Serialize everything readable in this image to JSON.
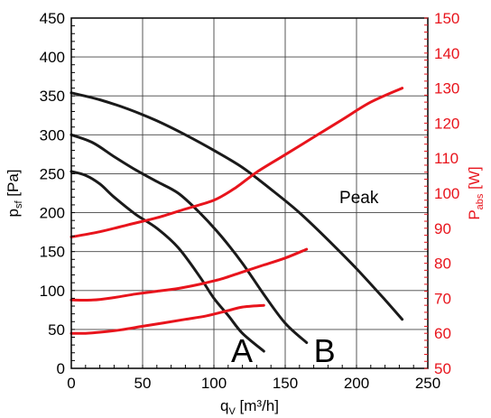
{
  "chart_data": {
    "type": "line",
    "x_axis": {
      "label_main": "q",
      "label_sub": "V",
      "label_unit": " [m³/h]",
      "range": [
        0,
        250
      ],
      "ticks": [
        "0",
        "50",
        "100",
        "150",
        "200",
        "250"
      ]
    },
    "y_axis_left": {
      "label_main": "p",
      "label_sub": "sf",
      "label_unit": " [Pa]",
      "range": [
        0,
        450
      ],
      "ticks": [
        "0",
        "50",
        "100",
        "150",
        "200",
        "250",
        "300",
        "350",
        "400",
        "450"
      ],
      "color": "#000000"
    },
    "y_axis_right": {
      "label_main": "P",
      "label_sub": "abs",
      "label_unit": " [W]",
      "range": [
        50,
        150
      ],
      "ticks": [
        "50",
        "60",
        "70",
        "80",
        "90",
        "100",
        "110",
        "120",
        "130",
        "140",
        "150"
      ],
      "color": "#e8141c"
    },
    "grid": true,
    "annotations": [
      {
        "text": "A",
        "x": 112,
        "y": 8,
        "style": "big"
      },
      {
        "text": "B",
        "x": 170,
        "y": 8,
        "style": "big"
      },
      {
        "text": "Peak",
        "x": 188,
        "y": 212,
        "style": "normal"
      }
    ],
    "series": [
      {
        "axis": "left",
        "color": "#1a1a1a",
        "points": [
          [
            0,
            253
          ],
          [
            10,
            248
          ],
          [
            20,
            237
          ],
          [
            30,
            220
          ],
          [
            45,
            198
          ],
          [
            60,
            180
          ],
          [
            75,
            155
          ],
          [
            90,
            118
          ],
          [
            100,
            90
          ],
          [
            110,
            68
          ],
          [
            120,
            45
          ],
          [
            135,
            22
          ]
        ]
      },
      {
        "axis": "left",
        "color": "#1a1a1a",
        "points": [
          [
            0,
            300
          ],
          [
            15,
            290
          ],
          [
            30,
            272
          ],
          [
            45,
            255
          ],
          [
            60,
            240
          ],
          [
            75,
            225
          ],
          [
            90,
            200
          ],
          [
            105,
            170
          ],
          [
            120,
            135
          ],
          [
            135,
            95
          ],
          [
            150,
            58
          ],
          [
            165,
            33
          ]
        ]
      },
      {
        "axis": "left",
        "color": "#1a1a1a",
        "points": [
          [
            0,
            354
          ],
          [
            20,
            345
          ],
          [
            40,
            333
          ],
          [
            60,
            318
          ],
          [
            80,
            300
          ],
          [
            100,
            280
          ],
          [
            120,
            258
          ],
          [
            140,
            230
          ],
          [
            160,
            200
          ],
          [
            180,
            165
          ],
          [
            200,
            128
          ],
          [
            220,
            88
          ],
          [
            232,
            63
          ]
        ]
      },
      {
        "axis": "right",
        "color": "#e8141c",
        "points": [
          [
            0,
            60
          ],
          [
            10,
            60
          ],
          [
            20,
            60.3
          ],
          [
            35,
            61
          ],
          [
            50,
            62
          ],
          [
            65,
            63
          ],
          [
            80,
            64
          ],
          [
            95,
            65
          ],
          [
            110,
            66.5
          ],
          [
            120,
            67.5
          ],
          [
            135,
            68
          ]
        ]
      },
      {
        "axis": "right",
        "color": "#e8141c",
        "points": [
          [
            0,
            69.5
          ],
          [
            15,
            69.5
          ],
          [
            30,
            70.2
          ],
          [
            45,
            71.2
          ],
          [
            60,
            72
          ],
          [
            75,
            72.8
          ],
          [
            90,
            74
          ],
          [
            105,
            75.5
          ],
          [
            120,
            77.5
          ],
          [
            135,
            79.5
          ],
          [
            150,
            81.5
          ],
          [
            165,
            84
          ]
        ]
      },
      {
        "axis": "right",
        "color": "#e8141c",
        "points": [
          [
            0,
            87.5
          ],
          [
            20,
            89
          ],
          [
            40,
            91
          ],
          [
            60,
            93
          ],
          [
            80,
            95.5
          ],
          [
            100,
            98
          ],
          [
            115,
            101.5
          ],
          [
            130,
            106
          ],
          [
            150,
            111
          ],
          [
            170,
            116
          ],
          [
            190,
            121
          ],
          [
            210,
            126
          ],
          [
            232,
            130
          ]
        ]
      }
    ]
  }
}
